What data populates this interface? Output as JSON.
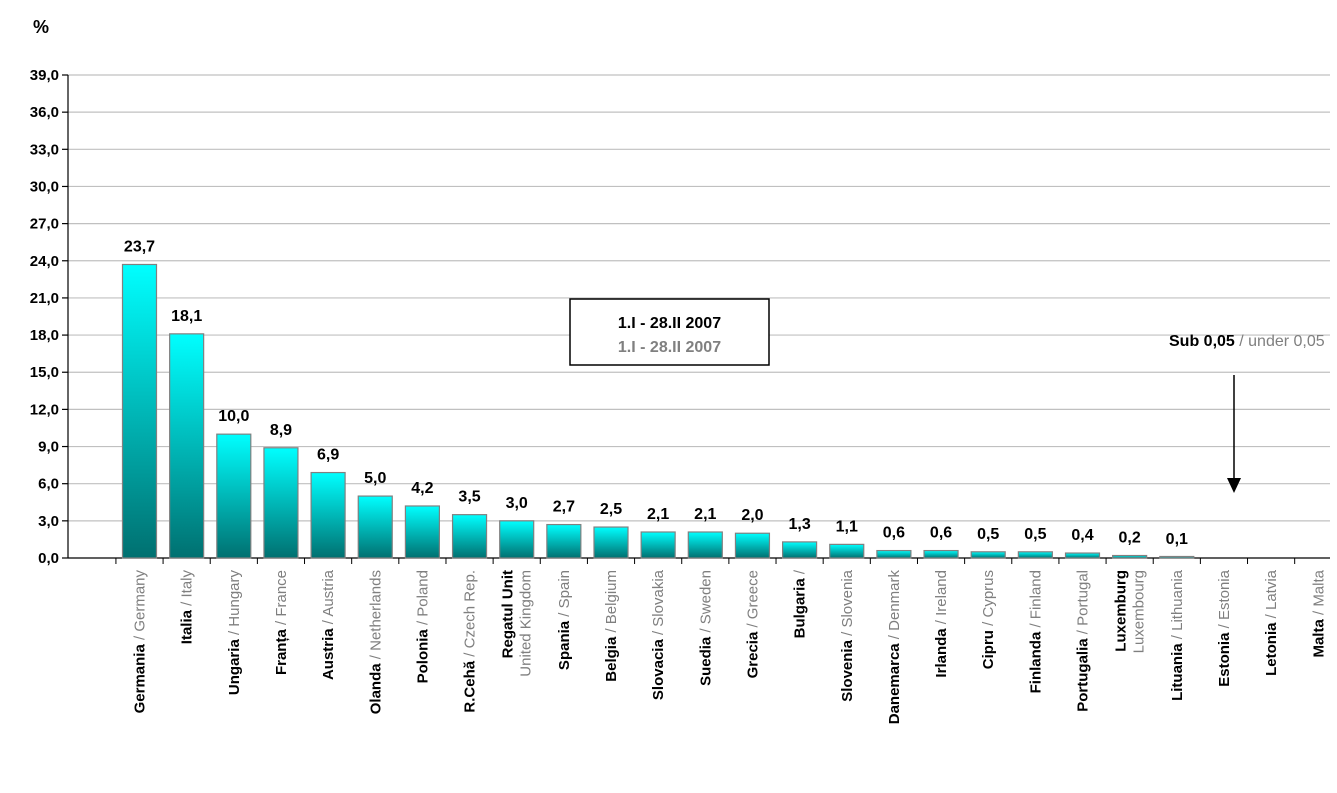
{
  "chart_data": {
    "type": "bar",
    "ylabel": "%",
    "ylim": [
      0,
      39
    ],
    "yticks": [
      "0,0",
      "3,0",
      "6,0",
      "9,0",
      "12,0",
      "15,0",
      "18,0",
      "21,0",
      "24,0",
      "27,0",
      "30,0",
      "33,0",
      "36,0",
      "39,0"
    ],
    "grid": true,
    "bar_color_top": "#00ffff",
    "bar_color_bottom": "#007070",
    "categories": [
      {
        "ro": "Germania",
        "en": "Germany",
        "value": 23.7,
        "label": "23,7"
      },
      {
        "ro": "Italia",
        "en": "Italy",
        "value": 18.1,
        "label": "18,1"
      },
      {
        "ro": "Ungaria",
        "en": "Hungary",
        "value": 10.0,
        "label": "10,0"
      },
      {
        "ro": "Franța",
        "en": "France",
        "value": 8.9,
        "label": "8,9"
      },
      {
        "ro": "Austria",
        "en": "Austria",
        "value": 6.9,
        "label": "6,9"
      },
      {
        "ro": "Olanda",
        "en": "Netherlands",
        "value": 5.0,
        "label": "5,0"
      },
      {
        "ro": "Polonia",
        "en": "Poland",
        "value": 4.2,
        "label": "4,2"
      },
      {
        "ro": "R.Cehă",
        "en": "Czech Rep.",
        "value": 3.5,
        "label": "3,5"
      },
      {
        "ro": "Regatul Unit",
        "en": "United Kingdom",
        "value": 3.0,
        "label": "3,0",
        "two_line": true
      },
      {
        "ro": "Spania",
        "en": "Spain",
        "value": 2.7,
        "label": "2,7"
      },
      {
        "ro": "Belgia",
        "en": "Belgium",
        "value": 2.5,
        "label": "2,5"
      },
      {
        "ro": "Slovacia",
        "en": "Slovakia",
        "value": 2.1,
        "label": "2,1"
      },
      {
        "ro": "Suedia",
        "en": "Sweden",
        "value": 2.1,
        "label": "2,1"
      },
      {
        "ro": "Grecia",
        "en": "Greece",
        "value": 2.0,
        "label": "2,0"
      },
      {
        "ro": "Bulgaria",
        "en": "",
        "value": 1.3,
        "label": "1,3"
      },
      {
        "ro": "Slovenia",
        "en": "Slovenia",
        "value": 1.1,
        "label": "1,1"
      },
      {
        "ro": "Danemarca",
        "en": "Denmark",
        "value": 0.6,
        "label": "0,6"
      },
      {
        "ro": "Irlanda",
        "en": "Ireland",
        "value": 0.6,
        "label": "0,6"
      },
      {
        "ro": "Cipru",
        "en": "Cyprus",
        "value": 0.5,
        "label": "0,5"
      },
      {
        "ro": "Finlanda",
        "en": "Finland",
        "value": 0.5,
        "label": "0,5"
      },
      {
        "ro": "Portugalia",
        "en": "Portugal",
        "value": 0.4,
        "label": "0,4"
      },
      {
        "ro": "Luxemburg",
        "en": "Luxembourg",
        "value": 0.2,
        "label": "0,2",
        "two_line": true
      },
      {
        "ro": "Lituania",
        "en": "Lithuania",
        "value": 0.1,
        "label": "0,1"
      },
      {
        "ro": "Estonia",
        "en": "Estonia",
        "value": 0,
        "label": ""
      },
      {
        "ro": "Letonia",
        "en": "Latvia",
        "value": 0,
        "label": ""
      },
      {
        "ro": "Malta",
        "en": "Malta",
        "value": 0,
        "label": ""
      }
    ],
    "legend": {
      "line1": "1.I - 28.II 2007",
      "line2": "1.I - 28.II 2007"
    },
    "note": {
      "ro": "Sub 0,05",
      "sep": " / ",
      "en": "under 0,05"
    }
  }
}
